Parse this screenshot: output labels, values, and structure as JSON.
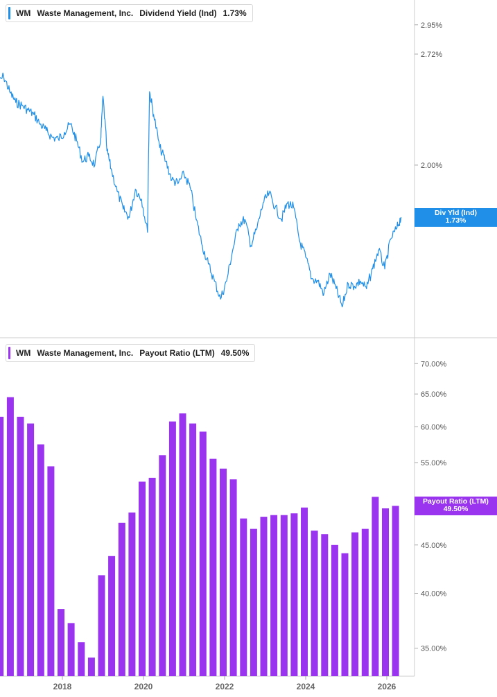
{
  "chart_data": [
    {
      "type": "line",
      "ticker": "WM",
      "company": "Waste Management, Inc.",
      "metric": "Dividend Yield (Ind)",
      "current_label": "1.73%",
      "badge_line1": "Div Yld (Ind)",
      "badge_line2": "1.73%",
      "color": "#1f8fe8",
      "y_scale": "log",
      "y_ticks": [
        "2.95%",
        "2.72%",
        "2.00%"
      ],
      "y_tick_values": [
        2.95,
        2.72,
        2.0
      ],
      "grid": false,
      "x": [
        2016.4,
        2016.55,
        2016.7,
        2016.85,
        2017.0,
        2017.15,
        2017.3,
        2017.45,
        2017.6,
        2017.75,
        2017.9,
        2018.05,
        2018.2,
        2018.35,
        2018.5,
        2018.65,
        2018.8,
        2018.95,
        2019.0,
        2019.1,
        2019.2,
        2019.35,
        2019.5,
        2019.65,
        2019.8,
        2019.95,
        2020.1,
        2020.15,
        2020.25,
        2020.4,
        2020.55,
        2020.7,
        2020.85,
        2021.0,
        2021.15,
        2021.3,
        2021.45,
        2021.6,
        2021.75,
        2021.9,
        2022.05,
        2022.2,
        2022.35,
        2022.5,
        2022.65,
        2022.8,
        2022.95,
        2023.1,
        2023.25,
        2023.4,
        2023.55,
        2023.7,
        2023.85,
        2024.0,
        2024.15,
        2024.3,
        2024.45,
        2024.6,
        2024.75,
        2024.9,
        2025.05,
        2025.2,
        2025.35,
        2025.5,
        2025.65,
        2025.8,
        2025.95,
        2026.1,
        2026.25,
        2026.35
      ],
      "y": [
        2.5,
        2.56,
        2.45,
        2.38,
        2.36,
        2.33,
        2.3,
        2.24,
        2.2,
        2.16,
        2.15,
        2.19,
        2.24,
        2.14,
        2.02,
        2.05,
        2.0,
        2.16,
        2.42,
        2.08,
        1.98,
        1.86,
        1.77,
        1.73,
        1.87,
        1.82,
        1.66,
        2.45,
        2.3,
        2.1,
        2.02,
        1.92,
        1.9,
        1.95,
        1.88,
        1.72,
        1.6,
        1.52,
        1.45,
        1.38,
        1.45,
        1.58,
        1.7,
        1.72,
        1.6,
        1.68,
        1.8,
        1.85,
        1.78,
        1.72,
        1.8,
        1.78,
        1.62,
        1.55,
        1.46,
        1.45,
        1.4,
        1.48,
        1.42,
        1.35,
        1.44,
        1.43,
        1.45,
        1.42,
        1.5,
        1.58,
        1.5,
        1.63,
        1.68,
        1.73
      ]
    },
    {
      "type": "bar",
      "ticker": "WM",
      "company": "Waste Management, Inc.",
      "metric": "Payout Ratio (LTM)",
      "current_label": "49.50%",
      "badge_line1": "Payout Ratio (LTM)",
      "badge_line2": "49.50%",
      "color": "#9b34ef",
      "y_scale": "log",
      "y_ticks": [
        "70.00%",
        "65.00%",
        "60.00%",
        "55.00%",
        "45.00%",
        "40.00%",
        "35.00%"
      ],
      "y_tick_values": [
        70,
        65,
        60,
        55,
        45,
        40,
        35
      ],
      "grid": false,
      "x": [
        2016.5,
        2016.75,
        2017.0,
        2017.25,
        2017.5,
        2017.75,
        2018.0,
        2018.25,
        2018.5,
        2018.75,
        2019.0,
        2019.25,
        2019.5,
        2019.75,
        2020.0,
        2020.25,
        2020.5,
        2020.75,
        2021.0,
        2021.25,
        2021.5,
        2021.75,
        2022.0,
        2022.25,
        2022.5,
        2022.75,
        2023.0,
        2023.25,
        2023.5,
        2023.75,
        2024.0,
        2024.25,
        2024.5,
        2024.75,
        2025.0,
        2025.25,
        2025.5,
        2025.75,
        2026.0,
        2026.25
      ],
      "values": [
        61.5,
        64.5,
        61.5,
        60.5,
        57.5,
        54.5,
        38.5,
        37.2,
        35.5,
        34.2,
        41.8,
        43.8,
        47.5,
        48.7,
        52.5,
        53.0,
        56.0,
        60.8,
        62.0,
        60.5,
        59.3,
        55.5,
        54.2,
        52.8,
        48.0,
        46.8,
        48.2,
        48.4,
        48.4,
        48.6,
        49.3,
        46.6,
        46.2,
        45.0,
        44.1,
        46.4,
        46.8,
        50.6,
        49.2,
        49.5
      ]
    }
  ],
  "x_axis": {
    "ticks": [
      "2018",
      "2020",
      "2022",
      "2024",
      "2026"
    ],
    "tick_values": [
      2018,
      2020,
      2022,
      2024,
      2026
    ]
  }
}
